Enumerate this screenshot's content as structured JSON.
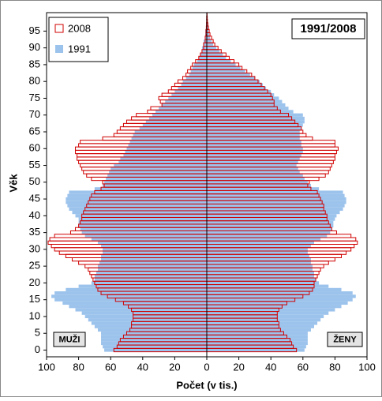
{
  "chart_data": {
    "type": "pyramid",
    "title": "1991/2008",
    "x_label": "Počet (v tis.)",
    "y_label": "Věk",
    "left_label": "MUŽI",
    "right_label": "ŽENY",
    "xlim": [
      -100,
      100
    ],
    "xticks": [
      {
        "value": -100,
        "label": "100"
      },
      {
        "value": -80,
        "label": "80"
      },
      {
        "value": -60,
        "label": "60"
      },
      {
        "value": -40,
        "label": "40"
      },
      {
        "value": -20,
        "label": "20"
      },
      0,
      20,
      40,
      60,
      80,
      100
    ],
    "ylim": [
      -2,
      100.5
    ],
    "yticks": [
      0,
      5,
      10,
      15,
      20,
      25,
      30,
      35,
      40,
      45,
      50,
      55,
      60,
      65,
      70,
      75,
      80,
      85,
      90,
      95
    ],
    "y": [
      0,
      1,
      2,
      3,
      4,
      5,
      6,
      7,
      8,
      9,
      10,
      11,
      12,
      13,
      14,
      15,
      16,
      17,
      18,
      19,
      20,
      21,
      22,
      23,
      24,
      25,
      26,
      27,
      28,
      29,
      30,
      31,
      32,
      33,
      34,
      35,
      36,
      37,
      38,
      39,
      40,
      41,
      42,
      43,
      44,
      45,
      46,
      47,
      48,
      49,
      50,
      51,
      52,
      53,
      54,
      55,
      56,
      57,
      58,
      59,
      60,
      61,
      62,
      63,
      64,
      65,
      66,
      67,
      68,
      69,
      70,
      71,
      72,
      73,
      74,
      75,
      76,
      77,
      78,
      79,
      80,
      81,
      82,
      83,
      84,
      85,
      86,
      87,
      88,
      89,
      90,
      91,
      92,
      93,
      94,
      95,
      96,
      97,
      98,
      99,
      100
    ],
    "series": [
      {
        "name": "2008",
        "color": "#d00000",
        "filled": false,
        "men": [
          58,
          56,
          55,
          54,
          52,
          50,
          48,
          47,
          47,
          46,
          46,
          46,
          47,
          49,
          52,
          57,
          62,
          66,
          68,
          69,
          70,
          71,
          72,
          73,
          74,
          76,
          80,
          84,
          88,
          92,
          95,
          97,
          99,
          98,
          95,
          85,
          82,
          80,
          79,
          78,
          78,
          77,
          76,
          75,
          74,
          73,
          72,
          70,
          66,
          64,
          65,
          72,
          75,
          77,
          78,
          79,
          80,
          81,
          81,
          82,
          82,
          80,
          79,
          65,
          58,
          56,
          54,
          52,
          50,
          47,
          44,
          37,
          35,
          28,
          29,
          30,
          28,
          24,
          22,
          20,
          18,
          15,
          13,
          12,
          10,
          9,
          7,
          5,
          4,
          3,
          2,
          2,
          1,
          1,
          0.5,
          0.5,
          0.3,
          0.2,
          0.1,
          0.1,
          0
        ],
        "women": [
          56,
          54,
          53,
          52,
          50,
          48,
          46,
          45,
          45,
          44,
          44,
          44,
          45,
          47,
          50,
          55,
          60,
          64,
          66,
          67,
          67,
          68,
          69,
          70,
          71,
          73,
          76,
          80,
          84,
          87,
          90,
          92,
          94,
          93,
          90,
          81,
          78,
          77,
          76,
          75,
          75,
          74,
          73,
          73,
          72,
          71,
          70,
          69,
          65,
          63,
          64,
          70,
          74,
          76,
          77,
          78,
          79,
          80,
          80,
          81,
          82,
          80,
          80,
          66,
          62,
          60,
          59,
          57,
          55,
          53,
          51,
          46,
          44,
          42,
          42,
          41,
          40,
          38,
          36,
          34,
          32,
          30,
          28,
          25,
          22,
          20,
          17,
          14,
          12,
          9,
          7,
          5,
          4,
          3,
          2,
          1.5,
          1,
          0.7,
          0.4,
          0.3,
          0.2
        ]
      },
      {
        "name": "1991",
        "color": "#9cc3ec",
        "filled": true,
        "men": [
          64,
          65,
          66,
          66,
          66,
          66,
          68,
          70,
          72,
          74,
          76,
          78,
          82,
          86,
          90,
          95,
          97,
          95,
          88,
          80,
          72,
          70,
          70,
          69,
          68,
          68,
          67,
          66,
          66,
          65,
          65,
          66,
          68,
          72,
          76,
          78,
          79,
          80,
          80,
          80,
          82,
          84,
          86,
          87,
          88,
          88,
          87,
          86,
          70,
          65,
          64,
          63,
          62,
          61,
          60,
          58,
          55,
          54,
          52,
          51,
          50,
          49,
          48,
          47,
          46,
          45,
          42,
          40,
          38,
          36,
          34,
          32,
          30,
          28,
          26,
          24,
          22,
          20,
          18,
          16,
          15,
          13,
          11,
          10,
          9,
          8,
          6,
          5,
          4,
          3,
          3,
          2,
          2,
          1,
          1,
          1,
          0.5,
          0.4,
          0.3,
          0.2,
          0.1
        ],
        "women": [
          61,
          62,
          63,
          63,
          63,
          63,
          65,
          67,
          69,
          71,
          73,
          76,
          80,
          84,
          88,
          91,
          93,
          91,
          84,
          76,
          70,
          68,
          67,
          67,
          66,
          66,
          65,
          65,
          64,
          63,
          63,
          65,
          67,
          71,
          75,
          77,
          78,
          79,
          79,
          80,
          81,
          83,
          85,
          86,
          87,
          87,
          86,
          85,
          70,
          65,
          63,
          61,
          60,
          58,
          57,
          56,
          57,
          58,
          59,
          60,
          60,
          59,
          59,
          58,
          58,
          58,
          59,
          60,
          61,
          61,
          60,
          54,
          51,
          49,
          47,
          45,
          42,
          40,
          37,
          35,
          33,
          30,
          27,
          24,
          21,
          18,
          15,
          12,
          10,
          8,
          6,
          4,
          3,
          2,
          1.5,
          1,
          0.8,
          0.5,
          0.3,
          0.2,
          0.1
        ]
      }
    ]
  }
}
